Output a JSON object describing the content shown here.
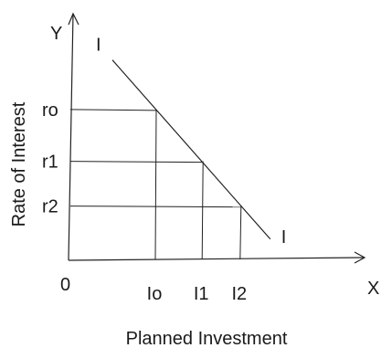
{
  "chart_data": {
    "type": "line",
    "title": "",
    "xlabel": "Planned Investment",
    "ylabel": "Rate of Interest",
    "x_axis_name": "X",
    "y_axis_name": "Y",
    "origin_label": "0",
    "curve_label": "I",
    "grid": false,
    "legend": "none",
    "xlim": [
      0,
      10
    ],
    "ylim": [
      0,
      10
    ],
    "curve": {
      "name": "I",
      "x": [
        1.5,
        6.9
      ],
      "y": [
        8.5,
        0.9
      ]
    },
    "points": [
      {
        "x_label": "Io",
        "y_label": "ro",
        "x": 3.0,
        "y": 6.4
      },
      {
        "x_label": "I1",
        "y_label": "r1",
        "x": 4.6,
        "y": 4.2
      },
      {
        "x_label": "I2",
        "y_label": "r2",
        "x": 5.9,
        "y": 2.3
      }
    ]
  }
}
